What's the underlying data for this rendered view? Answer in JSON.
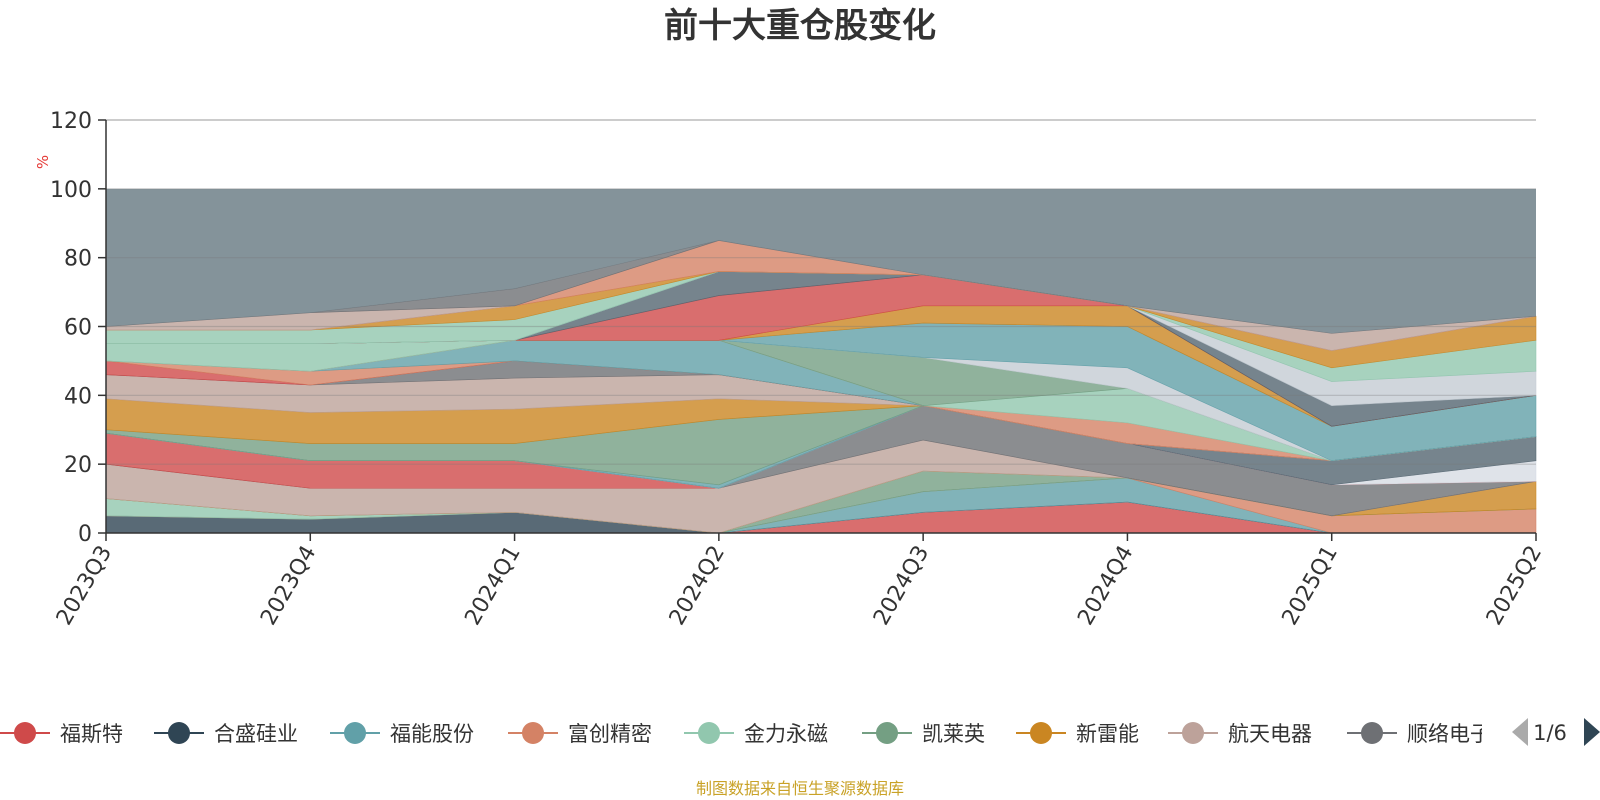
{
  "chart_data": {
    "type": "area",
    "title": "前十大重仓股变化",
    "ylabel": "%",
    "ylim": [
      0,
      120
    ],
    "yticks": [
      0,
      20,
      40,
      60,
      80,
      100,
      120
    ],
    "grid": true,
    "categories": [
      "2023Q3",
      "2023Q4",
      "2024Q1",
      "2024Q2",
      "2024Q3",
      "2024Q4",
      "2025Q1",
      "2025Q2"
    ],
    "series": [
      {
        "name": "福斯特",
        "color": "#cf4a4a",
        "values": [
          0,
          0,
          0,
          0,
          6,
          9,
          0,
          0
        ]
      },
      {
        "name": "合盛硅业",
        "color": "#2f4554",
        "values": [
          5,
          4,
          6,
          0,
          0,
          0,
          0,
          0
        ]
      },
      {
        "name": "福能股份",
        "color": "#61a0a8",
        "values": [
          0,
          0,
          0,
          0,
          6,
          7,
          0,
          0
        ]
      },
      {
        "name": "富创精密",
        "color": "#d48265",
        "values": [
          0,
          0,
          0,
          0,
          0,
          0,
          5,
          7
        ]
      },
      {
        "name": "金力永磁",
        "color": "#91c7ae",
        "values": [
          5,
          1,
          0,
          0,
          0,
          0,
          0,
          0
        ]
      },
      {
        "name": "凯莱英",
        "color": "#749f83",
        "values": [
          0,
          0,
          0,
          0,
          6,
          0,
          0,
          0
        ]
      },
      {
        "name": "新雷能",
        "color": "#ca8622",
        "values": [
          0,
          0,
          0,
          0,
          0,
          0,
          0,
          8
        ]
      },
      {
        "name": "航天电器",
        "color": "#bda29a",
        "values": [
          10,
          8,
          7,
          13,
          9,
          0,
          0,
          0
        ]
      },
      {
        "name": "顺络电子",
        "color": "#6e7074",
        "values": [
          0,
          0,
          0,
          0,
          10,
          10,
          9,
          0
        ]
      },
      {
        "name": "",
        "color": "#cf4a4a",
        "values": [
          9,
          8,
          8,
          0,
          0,
          0,
          0,
          0
        ]
      },
      {
        "name": "",
        "color": "#d7dce4",
        "values": [
          0,
          0,
          0,
          0,
          0,
          0,
          0,
          6
        ]
      },
      {
        "name": "",
        "color": "#546570",
        "values": [
          0,
          0,
          0,
          0,
          0,
          0,
          7,
          7
        ]
      },
      {
        "name": "",
        "color": "#c4ccd3",
        "values": [
          0,
          0,
          0,
          0,
          0,
          0,
          0,
          0
        ]
      },
      {
        "name": "",
        "color": "#61a0a8",
        "values": [
          0,
          0,
          0,
          1,
          0,
          0,
          0,
          0
        ]
      },
      {
        "name": "",
        "color": "#749f83",
        "values": [
          1,
          5,
          5,
          19,
          0,
          0,
          0,
          0
        ]
      },
      {
        "name": "",
        "color": "#ca8622",
        "values": [
          9,
          9,
          10,
          6,
          0,
          0,
          0,
          0
        ]
      },
      {
        "name": "",
        "color": "#bda29a",
        "values": [
          7,
          8,
          9,
          7,
          0,
          0,
          0,
          0
        ]
      },
      {
        "name": "",
        "color": "#6e7074",
        "values": [
          0,
          0,
          5,
          0,
          0,
          0,
          0,
          0
        ]
      },
      {
        "name": "",
        "color": "#cf4a4a",
        "values": [
          4,
          0,
          0,
          0,
          0,
          0,
          0,
          0
        ]
      },
      {
        "name": "",
        "color": "#d48265",
        "values": [
          0,
          4,
          0,
          0,
          0,
          0,
          0,
          0
        ]
      },
      {
        "name": "",
        "color": "#61a0a8",
        "values": [
          0,
          0,
          6,
          10,
          0,
          0,
          0,
          0
        ]
      },
      {
        "name": "",
        "color": "#d48265",
        "values": [
          0,
          0,
          0,
          0,
          0,
          6,
          0,
          0
        ]
      },
      {
        "name": "",
        "color": "#91c7ae",
        "values": [
          5,
          8,
          0,
          0,
          0,
          10,
          0,
          0
        ]
      },
      {
        "name": "",
        "color": "#749f83",
        "values": [
          0,
          0,
          0,
          0,
          14,
          0,
          0,
          0
        ]
      },
      {
        "name": "",
        "color": "#c4ccd3",
        "values": [
          0,
          0,
          0,
          0,
          0,
          6,
          0,
          0
        ]
      },
      {
        "name": "",
        "color": "#61a0a8",
        "values": [
          0,
          0,
          0,
          0,
          10,
          12,
          10,
          12
        ]
      },
      {
        "name": "",
        "color": "#ca8622",
        "values": [
          0,
          0,
          0,
          0,
          5,
          6,
          0,
          0
        ]
      },
      {
        "name": "",
        "color": "#cf4a4a",
        "values": [
          0,
          0,
          0,
          13,
          9,
          0,
          0,
          0
        ]
      },
      {
        "name": "",
        "color": "#546570",
        "values": [
          0,
          0,
          0,
          7,
          0,
          0,
          6,
          0
        ]
      },
      {
        "name": "",
        "color": "#c4ccd3",
        "values": [
          0,
          0,
          0,
          0,
          0,
          0,
          7,
          7
        ]
      },
      {
        "name": "",
        "color": "#91c7ae",
        "values": [
          4,
          4,
          6,
          0,
          0,
          0,
          4,
          9
        ]
      },
      {
        "name": "",
        "color": "#ca8622",
        "values": [
          0,
          0,
          4,
          0,
          0,
          0,
          5,
          7
        ]
      },
      {
        "name": "",
        "color": "#d48265",
        "values": [
          0,
          0,
          0,
          9,
          0,
          0,
          0,
          0
        ]
      },
      {
        "name": "",
        "color": "#bda29a",
        "values": [
          1,
          5,
          0,
          0,
          0,
          0,
          5,
          0
        ]
      },
      {
        "name": "",
        "color": "#6e7074",
        "values": [
          0,
          0,
          5,
          0,
          0,
          0,
          0,
          0
        ]
      }
    ],
    "remainder_color": "#6f8088",
    "remainder_opacity": 0.85,
    "legend": {
      "position": "bottom",
      "items": [
        {
          "label": "福斯特",
          "color": "#cf4a4a"
        },
        {
          "label": "合盛硅业",
          "color": "#2f4554"
        },
        {
          "label": "福能股份",
          "color": "#61a0a8"
        },
        {
          "label": "富创精密",
          "color": "#d48265"
        },
        {
          "label": "金力永磁",
          "color": "#91c7ae"
        },
        {
          "label": "凯莱英",
          "color": "#749f83"
        },
        {
          "label": "新雷能",
          "color": "#ca8622"
        },
        {
          "label": "航天电器",
          "color": "#bda29a"
        },
        {
          "label": "顺络电子",
          "color": "#6e7074"
        }
      ],
      "page": "1/6"
    },
    "source": "制图数据来自恒生聚源数据库"
  }
}
